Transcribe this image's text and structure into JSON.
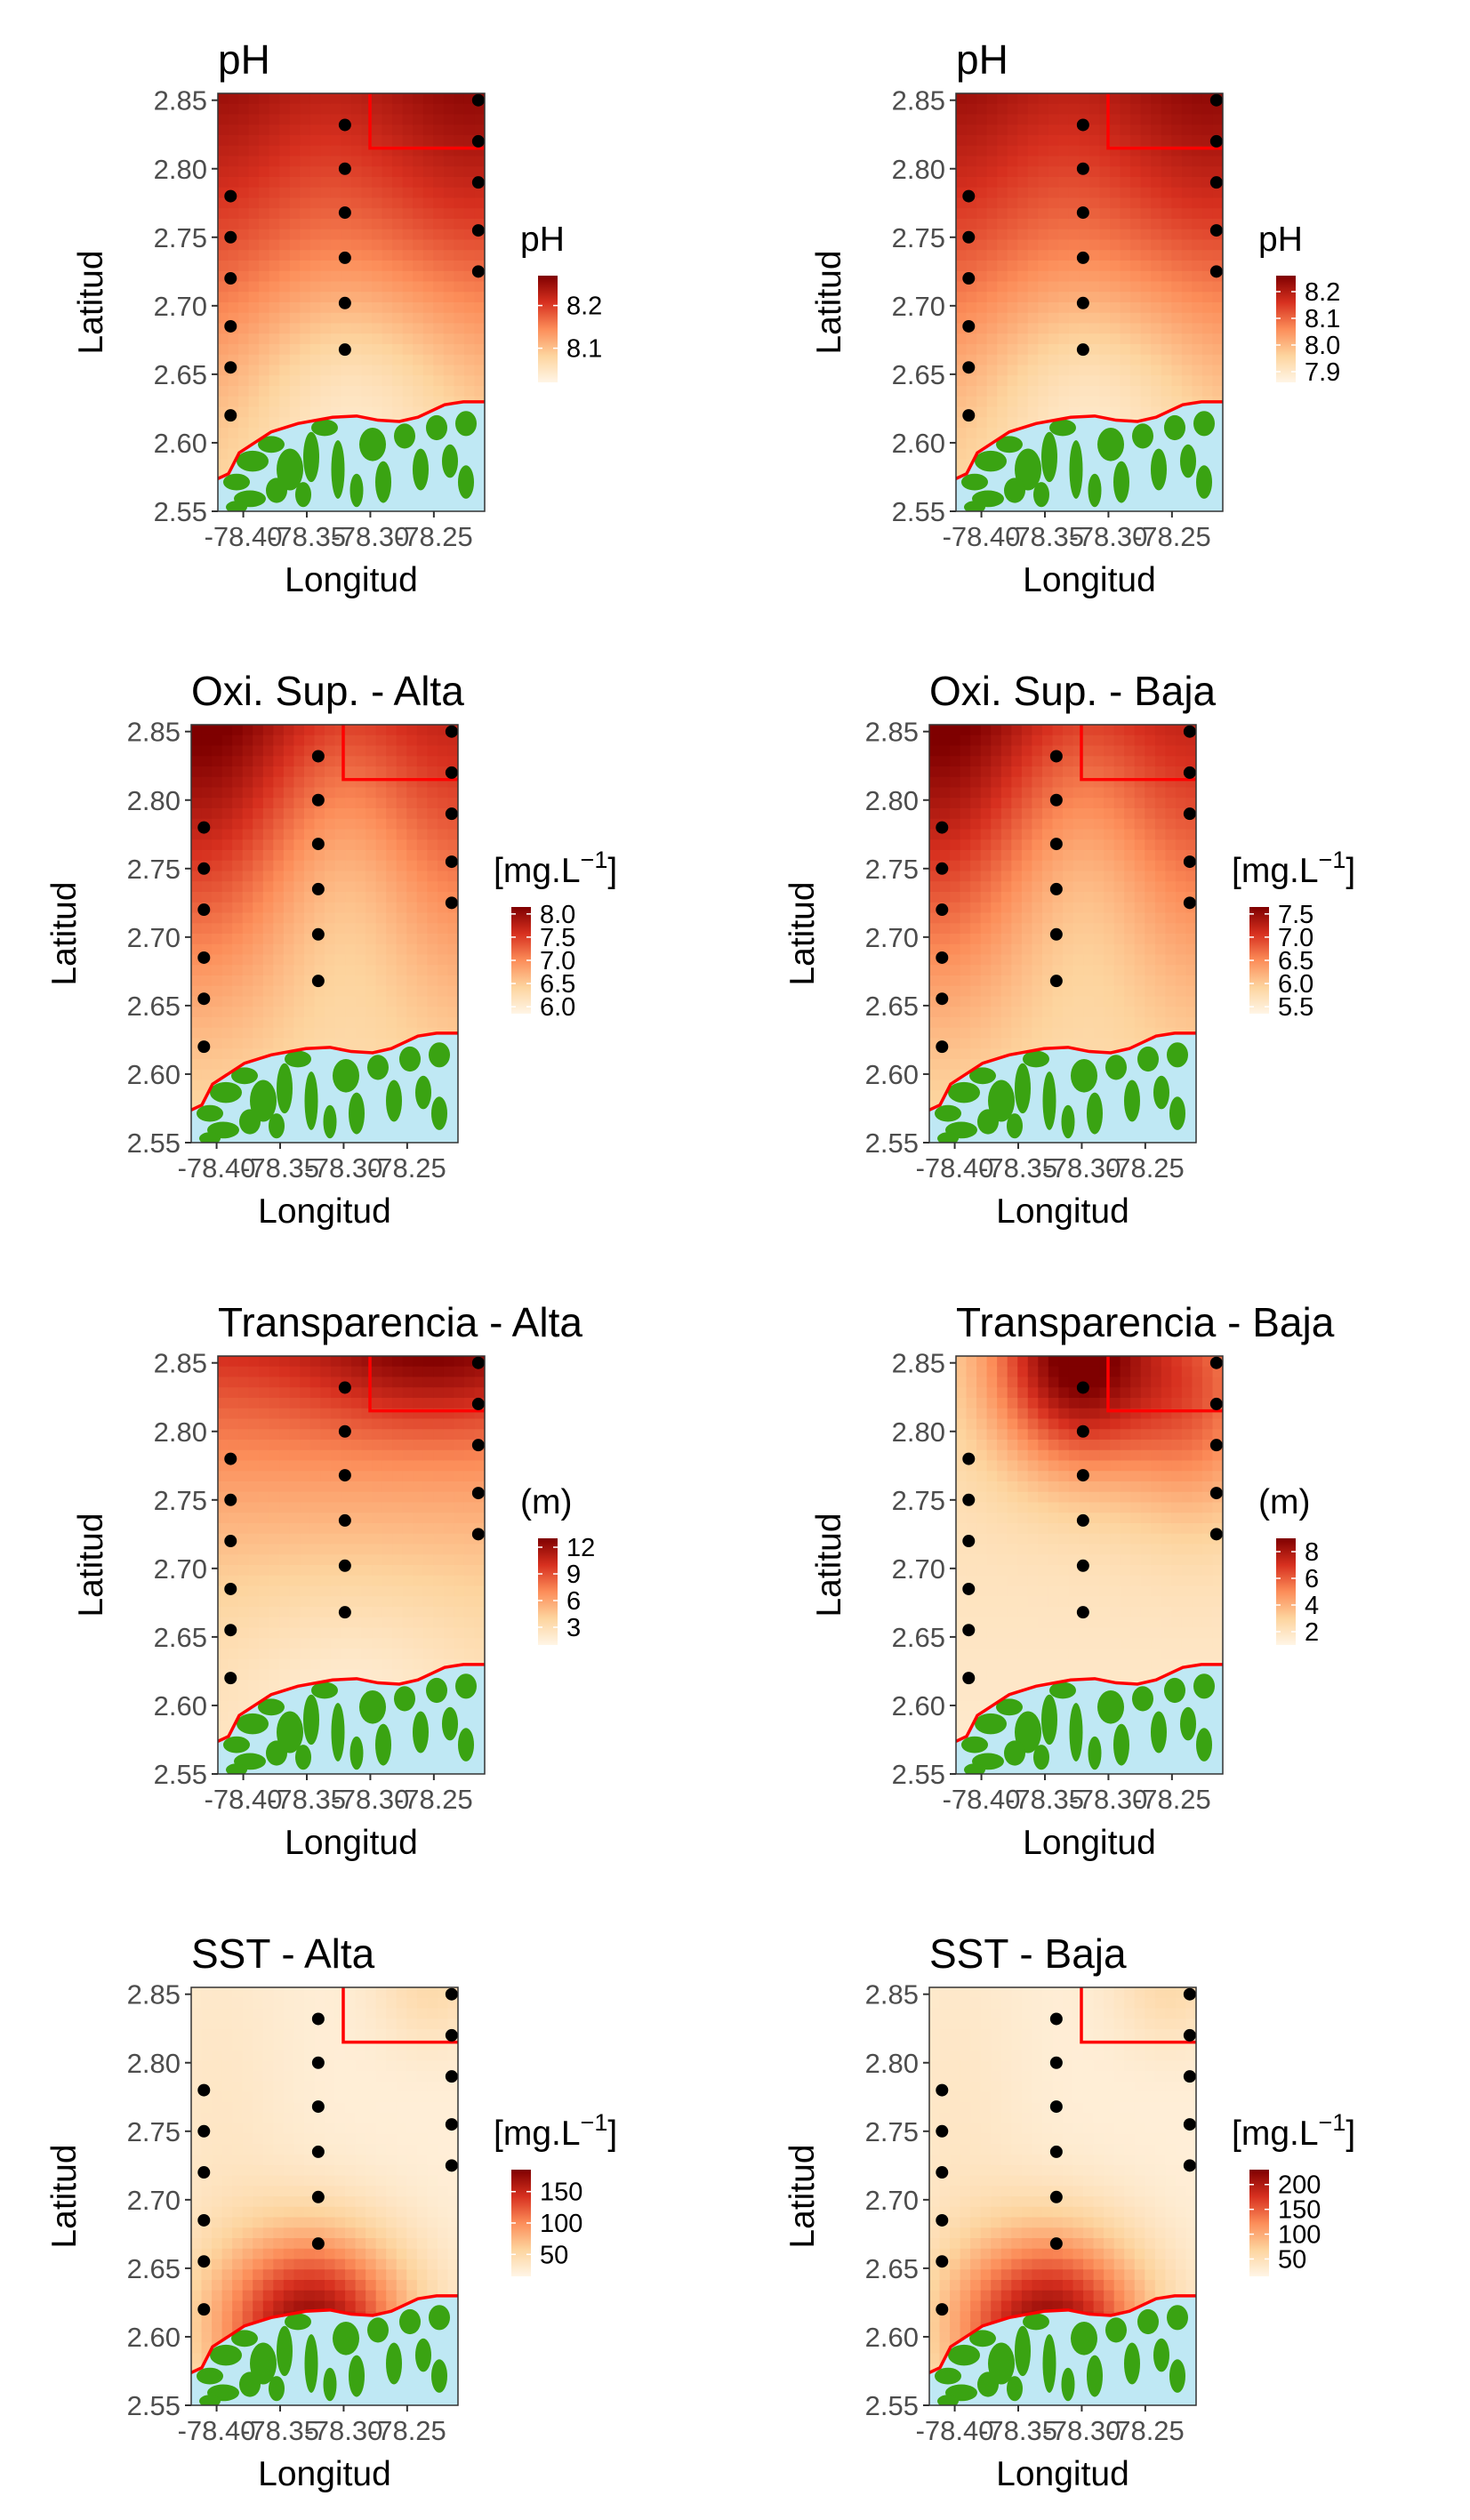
{
  "figure": {
    "colors": {
      "ramp": [
        "#fff5e6",
        "#fdd49e",
        "#fc8d59",
        "#d7301f",
        "#7f0000"
      ],
      "land": "#3aa312",
      "water": "#bfe8f4",
      "boundary": "#ff0000",
      "station": "#000000"
    },
    "axes": {
      "xlabel": "Longitud",
      "ylabel": "Latitud",
      "xlim": [
        -78.42,
        -78.21
      ],
      "ylim": [
        2.55,
        2.855
      ],
      "x_ticks": [
        -78.4,
        -78.35,
        -78.3,
        -78.25
      ],
      "x_tick_labels": [
        "-78.40",
        "-78.35",
        "-78.30",
        "-78.25"
      ],
      "y_ticks": [
        2.55,
        2.6,
        2.65,
        2.7,
        2.75,
        2.8,
        2.85
      ],
      "y_tick_labels": [
        "2.55",
        "2.60",
        "2.65",
        "2.70",
        "2.75",
        "2.80",
        "2.85"
      ]
    },
    "stations": {
      "lon_west": -78.41,
      "lon_mid": -78.32,
      "lon_east": -78.215,
      "west_lats": [
        2.62,
        2.655,
        2.685,
        2.72,
        2.75,
        2.78
      ],
      "mid_lats": [
        2.668,
        2.702,
        2.735,
        2.768,
        2.8,
        2.832
      ],
      "east_lats": [
        2.725,
        2.755,
        2.79,
        2.82,
        2.85
      ]
    },
    "panels": [
      {
        "title": "pH",
        "legend": {
          "title": "pH",
          "ticks": [
            8.2,
            8.1
          ],
          "tick_labels": [
            "8.2",
            "8.1"
          ],
          "min": 8.02,
          "max": 8.27
        },
        "pattern": "ph"
      },
      {
        "title": "pH",
        "legend": {
          "title": "pH",
          "ticks": [
            8.2,
            8.1,
            8.0,
            7.9
          ],
          "tick_labels": [
            "8.2",
            "8.1",
            "8.0",
            "7.9"
          ],
          "min": 7.86,
          "max": 8.26
        },
        "pattern": "ph"
      },
      {
        "title": "Oxi. Sup. - Alta",
        "legend": {
          "title": "[mg.L",
          "title_sup": "−1",
          "title_end": "]",
          "ticks": [
            8.0,
            7.5,
            7.0,
            6.5,
            6.0
          ],
          "tick_labels": [
            "8.0",
            "7.5",
            "7.0",
            "6.5",
            "6.0"
          ],
          "min": 5.85,
          "max": 8.15
        },
        "pattern": "oxi"
      },
      {
        "title": "Oxi. Sup. - Baja",
        "legend": {
          "title": "[mg.L",
          "title_sup": "−1",
          "title_end": "]",
          "ticks": [
            7.5,
            7.0,
            6.5,
            6.0,
            5.5
          ],
          "tick_labels": [
            "7.5",
            "7.0",
            "6.5",
            "6.0",
            "5.5"
          ],
          "min": 5.35,
          "max": 7.65
        },
        "pattern": "oxi"
      },
      {
        "title": "Transparencia - Alta",
        "legend": {
          "title": "(m)",
          "ticks": [
            12,
            9,
            6,
            3
          ],
          "tick_labels": [
            "12",
            "9",
            "6",
            "3"
          ],
          "min": 1,
          "max": 13
        },
        "pattern": "transA"
      },
      {
        "title": "Transparencia - Baja",
        "legend": {
          "title": "(m)",
          "ticks": [
            8,
            6,
            4,
            2
          ],
          "tick_labels": [
            "8",
            "6",
            "4",
            "2"
          ],
          "min": 1,
          "max": 9
        },
        "pattern": "transB"
      },
      {
        "title": "SST - Alta",
        "legend": {
          "title": "[mg.L",
          "title_sup": "−1",
          "title_end": "]",
          "ticks": [
            150,
            100,
            50
          ],
          "tick_labels": [
            "150",
            "100",
            "50"
          ],
          "min": 15,
          "max": 185
        },
        "pattern": "sst"
      },
      {
        "title": "SST - Baja",
        "legend": {
          "title": "[mg.L",
          "title_sup": "−1",
          "title_end": "]",
          "ticks": [
            200,
            150,
            100,
            50
          ],
          "tick_labels": [
            "200",
            "150",
            "100",
            "50"
          ],
          "min": 15,
          "max": 230
        },
        "pattern": "sst"
      }
    ]
  },
  "chart_data": [
    {
      "type": "heatmap",
      "title": "pH",
      "xlabel": "Longitud",
      "ylabel": "Latitud",
      "xlim": [
        -78.42,
        -78.21
      ],
      "ylim": [
        2.55,
        2.855
      ],
      "legend_title": "pH",
      "value_range": [
        8.02,
        8.27
      ]
    },
    {
      "type": "heatmap",
      "title": "pH",
      "xlabel": "Longitud",
      "ylabel": "Latitud",
      "xlim": [
        -78.42,
        -78.21
      ],
      "ylim": [
        2.55,
        2.855
      ],
      "legend_title": "pH",
      "value_range": [
        7.86,
        8.26
      ]
    },
    {
      "type": "heatmap",
      "title": "Oxi. Sup. - Alta",
      "xlabel": "Longitud",
      "ylabel": "Latitud",
      "xlim": [
        -78.42,
        -78.21
      ],
      "ylim": [
        2.55,
        2.855
      ],
      "legend_title": "[mg.L−1]",
      "value_range": [
        5.85,
        8.15
      ]
    },
    {
      "type": "heatmap",
      "title": "Oxi. Sup. - Baja",
      "xlabel": "Longitud",
      "ylabel": "Latitud",
      "xlim": [
        -78.42,
        -78.21
      ],
      "ylim": [
        2.55,
        2.855
      ],
      "legend_title": "[mg.L−1]",
      "value_range": [
        5.35,
        7.65
      ]
    },
    {
      "type": "heatmap",
      "title": "Transparencia - Alta",
      "xlabel": "Longitud",
      "ylabel": "Latitud",
      "xlim": [
        -78.42,
        -78.21
      ],
      "ylim": [
        2.55,
        2.855
      ],
      "legend_title": "(m)",
      "value_range": [
        1,
        13
      ]
    },
    {
      "type": "heatmap",
      "title": "Transparencia - Baja",
      "xlabel": "Longitud",
      "ylabel": "Latitud",
      "xlim": [
        -78.42,
        -78.21
      ],
      "ylim": [
        2.55,
        2.855
      ],
      "legend_title": "(m)",
      "value_range": [
        1,
        9
      ]
    },
    {
      "type": "heatmap",
      "title": "SST - Alta",
      "xlabel": "Longitud",
      "ylabel": "Latitud",
      "xlim": [
        -78.42,
        -78.21
      ],
      "ylim": [
        2.55,
        2.855
      ],
      "legend_title": "[mg.L−1]",
      "value_range": [
        15,
        185
      ]
    },
    {
      "type": "heatmap",
      "title": "SST - Baja",
      "xlabel": "Longitud",
      "ylabel": "Latitud",
      "xlim": [
        -78.42,
        -78.21
      ],
      "ylim": [
        2.55,
        2.855
      ],
      "legend_title": "[mg.L−1]",
      "value_range": [
        15,
        230
      ]
    }
  ]
}
